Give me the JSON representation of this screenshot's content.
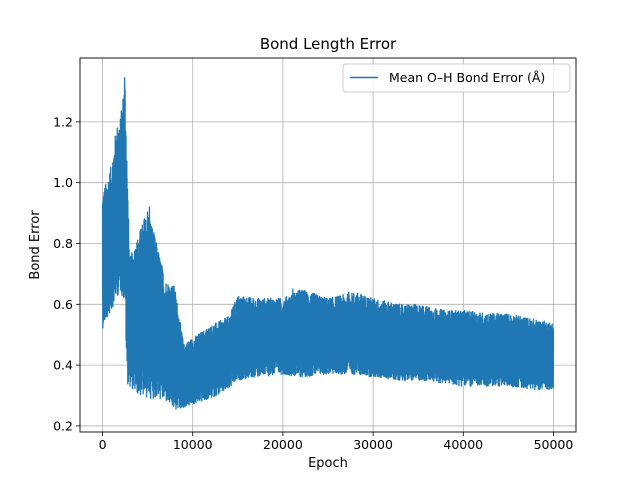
{
  "chart_data": {
    "type": "line",
    "title": "Bond Length Error",
    "xlabel": "Epoch",
    "ylabel": "Bond Error",
    "xlim": [
      -2500,
      52500
    ],
    "ylim": [
      0.18,
      1.41
    ],
    "xticks": [
      0,
      10000,
      20000,
      30000,
      40000,
      50000
    ],
    "xtick_labels": [
      "0",
      "10000",
      "20000",
      "30000",
      "40000",
      "50000"
    ],
    "yticks": [
      0.2,
      0.4,
      0.6,
      0.8,
      1.0,
      1.2
    ],
    "ytick_labels": [
      "0.2",
      "0.4",
      "0.6",
      "0.8",
      "1.0",
      "1.2"
    ],
    "grid": true,
    "legend_position": "top-right",
    "series": [
      {
        "name": "Mean O–H Bond Error (Å)",
        "color": "#1f77b4",
        "band_note_free": true,
        "epochs": [
          0,
          500,
          1000,
          1500,
          2000,
          2500,
          2700,
          3000,
          4000,
          5000,
          6000,
          7000,
          8000,
          9000,
          10000,
          12000,
          14000,
          15000,
          17000,
          20000,
          22000,
          25000,
          28000,
          30000,
          33000,
          35000,
          38000,
          40000,
          43000,
          45000,
          48000,
          50000
        ],
        "upper": [
          0.97,
          1.01,
          1.06,
          1.18,
          1.22,
          1.35,
          1.1,
          0.75,
          0.83,
          0.92,
          0.8,
          0.68,
          0.66,
          0.47,
          0.49,
          0.53,
          0.56,
          0.63,
          0.62,
          0.62,
          0.65,
          0.62,
          0.64,
          0.62,
          0.6,
          0.6,
          0.58,
          0.58,
          0.57,
          0.57,
          0.55,
          0.54
        ],
        "lower": [
          0.52,
          0.55,
          0.58,
          0.62,
          0.64,
          0.6,
          0.34,
          0.33,
          0.3,
          0.29,
          0.29,
          0.28,
          0.25,
          0.26,
          0.27,
          0.29,
          0.32,
          0.35,
          0.36,
          0.37,
          0.36,
          0.37,
          0.37,
          0.36,
          0.35,
          0.35,
          0.34,
          0.33,
          0.33,
          0.33,
          0.32,
          0.32
        ],
        "peak_points": [
          {
            "x": 2450,
            "y": 1.345
          },
          {
            "x": 5200,
            "y": 0.92
          },
          {
            "x": 14600,
            "y": 0.6
          },
          {
            "x": 21100,
            "y": 0.65
          },
          {
            "x": 27300,
            "y": 0.64
          }
        ]
      }
    ]
  }
}
